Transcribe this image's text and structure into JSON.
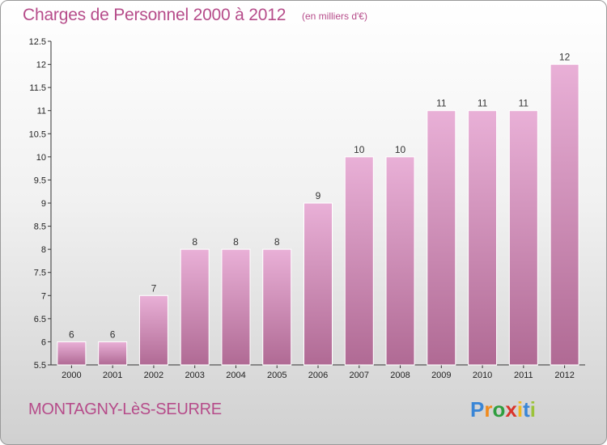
{
  "header": {
    "title": "Charges de Personnel 2000 à 2012",
    "subtitle": "(en milliers d'€)"
  },
  "footer": {
    "commune": "MONTAGNY-LèS-SEURRE",
    "logo_text": "Proxiti"
  },
  "colors": {
    "title": "#b64c8a",
    "bar_light": "#e9b0d7",
    "bar_dark": "#b06a94"
  },
  "chart_data": {
    "type": "bar",
    "categories": [
      "2000",
      "2001",
      "2002",
      "2003",
      "2004",
      "2005",
      "2006",
      "2007",
      "2008",
      "2009",
      "2010",
      "2011",
      "2012"
    ],
    "values": [
      6,
      6,
      7,
      8,
      8,
      8,
      9,
      10,
      10,
      11,
      11,
      11,
      12
    ],
    "data_labels": [
      "6",
      "6",
      "7",
      "8",
      "8",
      "8",
      "9",
      "10",
      "10",
      "11",
      "11",
      "11",
      "12"
    ],
    "y_ticks": [
      "5.5",
      "6",
      "6.5",
      "7",
      "7.5",
      "8",
      "8.5",
      "9",
      "9.5",
      "10",
      "10.5",
      "11",
      "11.5",
      "12",
      "12.5"
    ],
    "ylim": [
      5.5,
      12.5
    ],
    "grid": false,
    "legend": "none"
  }
}
